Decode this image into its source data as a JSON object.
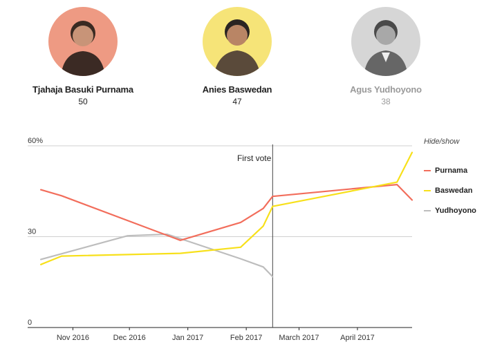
{
  "candidates": [
    {
      "name": "Tjahaja Basuki Purnama",
      "score": "50",
      "avatar_bg": "#ee9a83",
      "muted": false
    },
    {
      "name": "Anies Baswedan",
      "score": "47",
      "avatar_bg": "#f6e478",
      "muted": false
    },
    {
      "name": "Agus Yudhoyono",
      "score": "38",
      "avatar_bg": "#d6d6d6",
      "muted": true
    }
  ],
  "legend": {
    "title": "Hide/show",
    "items": [
      {
        "name": "Purnama",
        "color": "#f26d5b"
      },
      {
        "name": "Baswedan",
        "color": "#f7e01a"
      },
      {
        "name": "Yudhoyono",
        "color": "#bdbdbd"
      }
    ]
  },
  "chart_data": {
    "type": "line",
    "y_unit": "%",
    "ylim": [
      0,
      60
    ],
    "y_ticks": [
      {
        "value": 60,
        "label": "60%"
      },
      {
        "value": 30,
        "label": "30"
      },
      {
        "value": 0,
        "label": "0"
      }
    ],
    "xlim": [
      "2016-10-08",
      "2017-04-30"
    ],
    "x_ticks": [
      {
        "date": "2016-11-01",
        "label": "Nov 2016"
      },
      {
        "date": "2016-12-01",
        "label": "Dec 2016"
      },
      {
        "date": "2017-01-01",
        "label": "Jan 2017"
      },
      {
        "date": "2017-02-01",
        "label": "Feb 2017"
      },
      {
        "date": "2017-03-01",
        "label": "March 2017"
      },
      {
        "date": "2017-04-01",
        "label": "April 2017"
      }
    ],
    "annotation": {
      "label": "First vote",
      "date": "2017-02-15"
    },
    "grid": true,
    "series": [
      {
        "name": "Purnama",
        "color": "#f26d5b",
        "points": [
          {
            "x": "2016-10-15",
            "y": 45.5
          },
          {
            "x": "2016-10-26",
            "y": 43.5
          },
          {
            "x": "2016-12-28",
            "y": 28.8
          },
          {
            "x": "2017-01-29",
            "y": 34.7
          },
          {
            "x": "2017-02-10",
            "y": 39.3
          },
          {
            "x": "2017-02-15",
            "y": 43.3
          },
          {
            "x": "2017-04-22",
            "y": 47.2
          },
          {
            "x": "2017-04-30",
            "y": 42.1
          }
        ]
      },
      {
        "name": "Baswedan",
        "color": "#f7e01a",
        "points": [
          {
            "x": "2016-10-15",
            "y": 20.8
          },
          {
            "x": "2016-10-26",
            "y": 23.6
          },
          {
            "x": "2016-12-28",
            "y": 24.5
          },
          {
            "x": "2017-01-29",
            "y": 26.5
          },
          {
            "x": "2017-02-10",
            "y": 33.5
          },
          {
            "x": "2017-02-15",
            "y": 40.0
          },
          {
            "x": "2017-04-22",
            "y": 48.0
          },
          {
            "x": "2017-04-30",
            "y": 57.8
          }
        ]
      },
      {
        "name": "Yudhoyono",
        "color": "#bdbdbd",
        "points": [
          {
            "x": "2016-10-15",
            "y": 22.5
          },
          {
            "x": "2016-11-30",
            "y": 30.3
          },
          {
            "x": "2016-12-21",
            "y": 30.8
          },
          {
            "x": "2017-01-29",
            "y": 22.7
          },
          {
            "x": "2017-02-10",
            "y": 20.0
          },
          {
            "x": "2017-02-15",
            "y": 16.8
          }
        ]
      }
    ]
  }
}
